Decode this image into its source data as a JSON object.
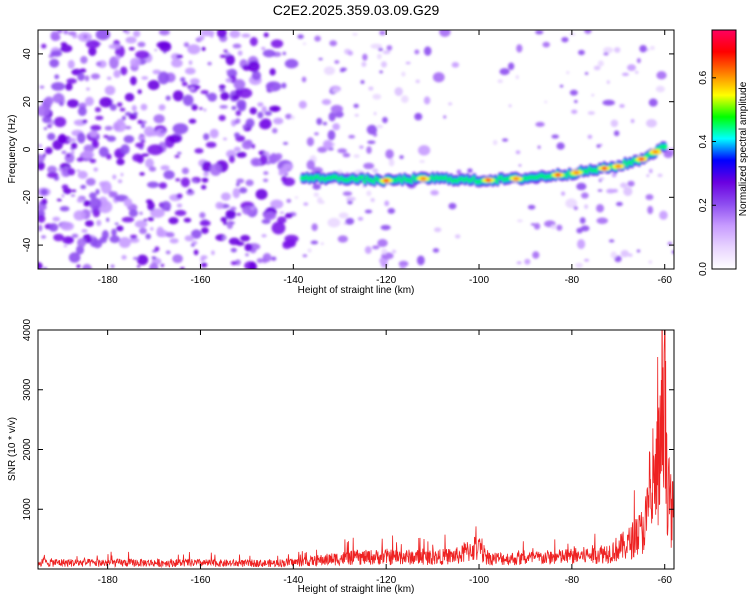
{
  "figure_title": "C2E2.2025.359.03.09.G29",
  "chart_data": [
    {
      "type": "heatmap",
      "xlabel": "Height of straight line (km)",
      "ylabel": "Frequency (Hz)",
      "xlim": [
        -195,
        -58
      ],
      "ylim": [
        -50,
        50
      ],
      "x_ticks": [
        -180,
        -160,
        -140,
        -120,
        -100,
        -80,
        -60
      ],
      "y_ticks": [
        -40,
        -20,
        0,
        20,
        40
      ],
      "colorbar": {
        "label": "Normalized spectral amplitude",
        "range": [
          0,
          0.75
        ],
        "ticks": [
          0.0,
          0.2,
          0.4,
          0.6
        ],
        "colors": [
          "#ffffff",
          "#e8d4ff",
          "#c79bff",
          "#8d4cf0",
          "#6a00e0",
          "#0000ff",
          "#00ffff",
          "#00ff00",
          "#ffff00",
          "#ff8000",
          "#ff0000",
          "#ff0060"
        ]
      },
      "ridge": {
        "description": "strong signal track",
        "points": [
          [
            -138,
            -12
          ],
          [
            -130,
            -12
          ],
          [
            -120,
            -13
          ],
          [
            -110,
            -12
          ],
          [
            -100,
            -13
          ],
          [
            -90,
            -12
          ],
          [
            -80,
            -10
          ],
          [
            -70,
            -7
          ],
          [
            -65,
            -4
          ],
          [
            -60,
            1
          ]
        ]
      },
      "vertical_gaps_km": [
        -102
      ]
    },
    {
      "type": "line",
      "xlabel": "Height of straight line (km)",
      "ylabel": "SNR (10 * v/v)",
      "xlim": [
        -195,
        -58
      ],
      "ylim": [
        0,
        4000
      ],
      "x_ticks": [
        -180,
        -160,
        -140,
        -120,
        -100,
        -80,
        -60
      ],
      "y_ticks": [
        1000,
        2000,
        3000,
        4000
      ],
      "color": "#ee2222",
      "series": [
        {
          "name": "SNR",
          "x": [
            -195,
            -185,
            -175,
            -165,
            -155,
            -145,
            -138,
            -130,
            -120,
            -110,
            -104,
            -101,
            -98,
            -92,
            -85,
            -78,
            -72,
            -68,
            -65,
            -63,
            -61,
            -60,
            -59,
            -58
          ],
          "values": [
            160,
            150,
            150,
            150,
            140,
            140,
            170,
            260,
            300,
            280,
            330,
            520,
            260,
            250,
            280,
            320,
            400,
            600,
            900,
            1500,
            2700,
            3600,
            1600,
            1200
          ]
        }
      ]
    }
  ]
}
